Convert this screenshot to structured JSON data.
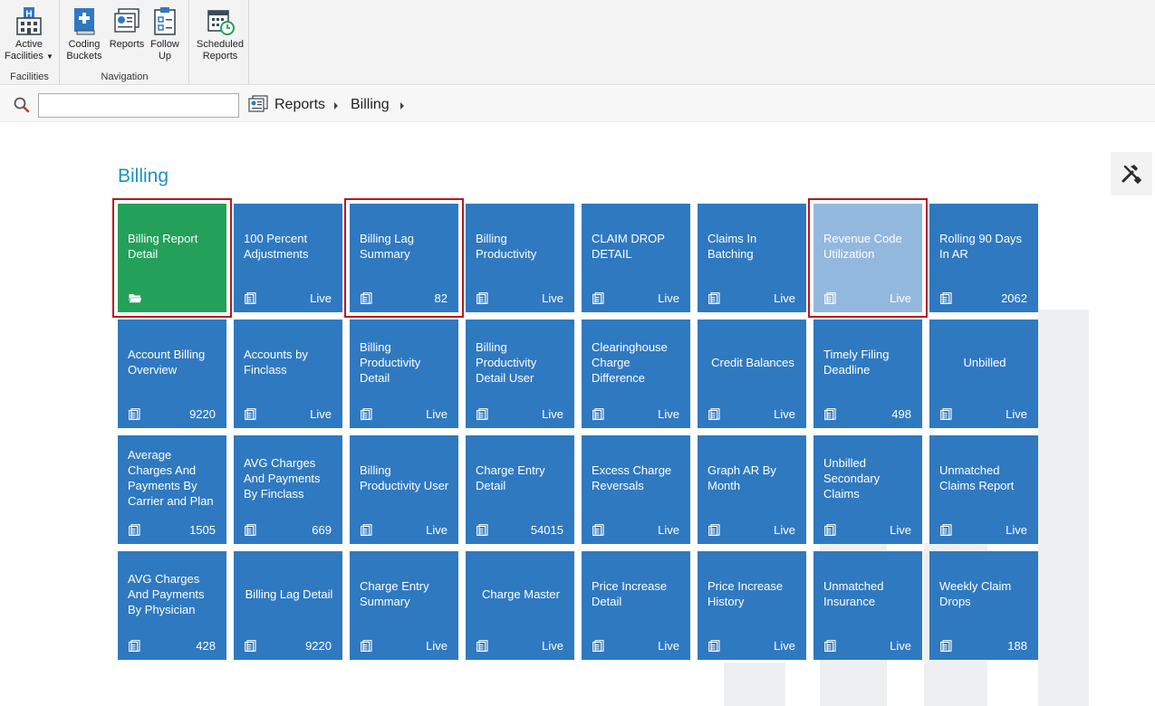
{
  "ribbon": {
    "facilities_group": "Facilities",
    "navigation_group": "Navigation",
    "active_facilities": "Active Facilities",
    "coding_buckets": "Coding Buckets",
    "reports": "Reports",
    "follow_up": "Follow Up",
    "scheduled_reports": "Scheduled Reports"
  },
  "search": {
    "value": "",
    "placeholder": ""
  },
  "breadcrumb": [
    "Reports",
    "Billing"
  ],
  "page_title": "Billing",
  "colors": {
    "tile_blue": "#2f79c1",
    "tile_green": "#23a05a",
    "tile_faded": "#93b8de",
    "selection_red": "#b8191d",
    "title_blue": "#1f90c0"
  },
  "tiles": [
    {
      "title": "Billing Report Detail",
      "count": "",
      "icon": "folder-icon",
      "style": "green",
      "selected": true
    },
    {
      "title": "100 Percent Adjustments",
      "count": "Live",
      "icon": "report-icon"
    },
    {
      "title": "Billing Lag Summary",
      "count": "82",
      "icon": "report-icon",
      "selected": true
    },
    {
      "title": "Billing Productivity",
      "count": "Live",
      "icon": "report-icon"
    },
    {
      "title": "CLAIM DROP DETAIL",
      "count": "Live",
      "icon": "report-icon"
    },
    {
      "title": "Claims In Batching",
      "count": "Live",
      "icon": "report-icon"
    },
    {
      "title": "Revenue Code Utilization",
      "count": "Live",
      "icon": "report-icon",
      "style": "faded",
      "selected": true
    },
    {
      "title": "Rolling 90 Days In AR",
      "count": "2062",
      "icon": "report-icon"
    },
    {
      "title": "Account Billing Overview",
      "count": "9220",
      "icon": "report-icon"
    },
    {
      "title": "Accounts by Finclass",
      "count": "Live",
      "icon": "report-icon"
    },
    {
      "title": "Billing Productivity Detail",
      "count": "Live",
      "icon": "report-icon"
    },
    {
      "title": "Billing Productivity Detail User",
      "count": "Live",
      "icon": "report-icon"
    },
    {
      "title": "Clearinghouse Charge Difference",
      "count": "Live",
      "icon": "report-icon"
    },
    {
      "title": "Credit Balances",
      "count": "Live",
      "icon": "report-icon"
    },
    {
      "title": "Timely Filing Deadline",
      "count": "498",
      "icon": "report-icon"
    },
    {
      "title": "Unbilled",
      "count": "Live",
      "icon": "report-icon"
    },
    {
      "title": "Average Charges And Payments By Carrier and Plan",
      "count": "1505",
      "icon": "report-icon"
    },
    {
      "title": "AVG Charges And Payments By Finclass",
      "count": "669",
      "icon": "report-icon"
    },
    {
      "title": "Billing Productivity User",
      "count": "Live",
      "icon": "report-icon"
    },
    {
      "title": "Charge Entry Detail",
      "count": "54015",
      "icon": "report-icon"
    },
    {
      "title": "Excess Charge Reversals",
      "count": "Live",
      "icon": "report-icon"
    },
    {
      "title": "Graph AR By Month",
      "count": "Live",
      "icon": "report-icon"
    },
    {
      "title": "Unbilled Secondary Claims",
      "count": "Live",
      "icon": "report-icon"
    },
    {
      "title": "Unmatched Claims Report",
      "count": "Live",
      "icon": "report-icon"
    },
    {
      "title": "AVG Charges And Payments By Physician",
      "count": "428",
      "icon": "report-icon"
    },
    {
      "title": "Billing Lag Detail",
      "count": "9220",
      "icon": "report-icon"
    },
    {
      "title": "Charge Entry Summary",
      "count": "Live",
      "icon": "report-icon"
    },
    {
      "title": "Charge Master",
      "count": "Live",
      "icon": "report-icon"
    },
    {
      "title": "Price Increase Detail",
      "count": "Live",
      "icon": "report-icon"
    },
    {
      "title": "Price Increase History",
      "count": "Live",
      "icon": "report-icon"
    },
    {
      "title": "Unmatched Insurance",
      "count": "Live",
      "icon": "report-icon"
    },
    {
      "title": "Weekly Claim Drops",
      "count": "188",
      "icon": "report-icon"
    }
  ]
}
